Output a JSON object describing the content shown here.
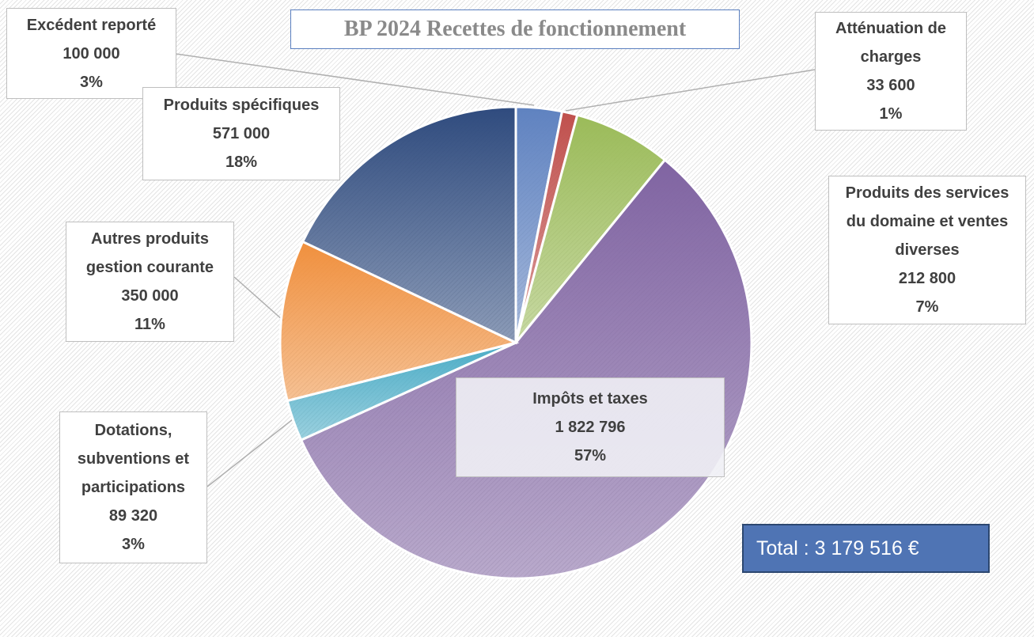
{
  "chart_data": {
    "type": "pie",
    "title": "BP 2024 Recettes de fonctionnement",
    "categories": [
      "Excédent reporté",
      "Atténuation de charges",
      "Produits des services du domaine et ventes diverses",
      "Impôts et taxes",
      "Dotations, subventions et participations",
      "Autres produits gestion courante",
      "Produits spécifiques"
    ],
    "values": [
      100000,
      33600,
      212800,
      1822796,
      89320,
      350000,
      571000
    ],
    "value_labels": [
      "100 000",
      "33 600",
      "212 800",
      "1 822 796",
      "89 320",
      "350 000",
      "571 000"
    ],
    "percent_labels": [
      "3%",
      "1%",
      "7%",
      "57%",
      "3%",
      "11%",
      "18%"
    ],
    "colors": [
      "#5f82c0",
      "#c0504d",
      "#9bbb59",
      "#8064a2",
      "#4bacc6",
      "#f0903e",
      "#2f4b7e"
    ],
    "total_label": "Total : 3 179 516 €"
  }
}
